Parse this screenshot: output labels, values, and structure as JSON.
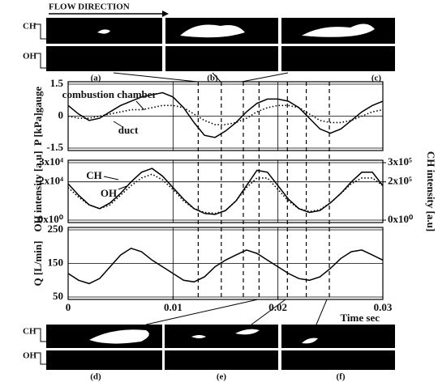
{
  "header": {
    "flow_direction": "FLOW DIRECTION"
  },
  "images": {
    "ch_label": "CH",
    "oh_label": "OH",
    "top_labels": [
      "(a)",
      "(b)",
      "(c)"
    ],
    "bottom_labels": [
      "(d)",
      "(e)",
      "(f)"
    ]
  },
  "snapshot_times": [
    0.0124,
    0.0146,
    0.0167,
    0.0182,
    0.0209,
    0.0227,
    0.0249
  ],
  "chart_data": [
    {
      "type": "line",
      "ylabel": "P [kPa]gauge",
      "x": [
        0,
        0.001,
        0.002,
        0.003,
        0.004,
        0.005,
        0.006,
        0.007,
        0.008,
        0.009,
        0.01,
        0.011,
        0.012,
        0.013,
        0.014,
        0.015,
        0.016,
        0.017,
        0.018,
        0.019,
        0.02,
        0.021,
        0.022,
        0.023,
        0.024,
        0.025,
        0.026,
        0.027,
        0.028,
        0.029,
        0.03
      ],
      "xlim": [
        0,
        0.03
      ],
      "ylim": [
        -1.5,
        1.5
      ],
      "yticks": [
        -1.5,
        0,
        1.5
      ],
      "series": [
        {
          "name": "combustion chamber",
          "color": "#000",
          "style": "solid",
          "values": [
            0.5,
            0.1,
            -0.2,
            -0.1,
            0.2,
            0.5,
            0.7,
            0.9,
            1.0,
            1.1,
            0.9,
            0.4,
            -0.3,
            -0.9,
            -1.0,
            -0.7,
            -0.3,
            0.2,
            0.6,
            0.8,
            0.8,
            0.7,
            0.4,
            -0.1,
            -0.6,
            -0.8,
            -0.6,
            -0.2,
            0.2,
            0.5,
            0.7
          ]
        },
        {
          "name": "duct",
          "color": "#000",
          "style": "dotted",
          "values": [
            0,
            -0.1,
            -0.1,
            0,
            0.1,
            0.2,
            0.3,
            0.3,
            0.4,
            0.5,
            0.5,
            0.4,
            0.1,
            -0.2,
            -0.4,
            -0.4,
            -0.3,
            -0.1,
            0.2,
            0.4,
            0.5,
            0.5,
            0.4,
            0.1,
            -0.2,
            -0.3,
            -0.3,
            -0.2,
            0,
            0.2,
            0.3
          ]
        }
      ]
    },
    {
      "type": "line",
      "ylabel": "OH intensity [a.u]",
      "y2label": "CH intensity [a.u]",
      "x": [
        0,
        0.001,
        0.002,
        0.003,
        0.004,
        0.005,
        0.006,
        0.007,
        0.008,
        0.009,
        0.01,
        0.011,
        0.012,
        0.013,
        0.014,
        0.015,
        0.016,
        0.017,
        0.018,
        0.019,
        0.02,
        0.021,
        0.022,
        0.023,
        0.024,
        0.025,
        0.026,
        0.027,
        0.028,
        0.029,
        0.03
      ],
      "xlim": [
        0,
        0.03
      ],
      "ylim": [
        0,
        30000
      ],
      "yticks": [
        {
          "value": 0,
          "label": "0x10⁰"
        },
        {
          "value": 20000,
          "label": "2x10⁴"
        },
        {
          "value": 30000,
          "label": "3x10⁴"
        }
      ],
      "y2lim": [
        0,
        300000
      ],
      "y2ticks": [
        {
          "value": 0,
          "label": "0x10⁰"
        },
        {
          "value": 200000,
          "label": "2x10⁵"
        },
        {
          "value": 300000,
          "label": "3x10⁵"
        }
      ],
      "series": [
        {
          "name": "CH",
          "color": "#000",
          "style": "solid",
          "axis": "y2",
          "values": [
            190000,
            130000,
            80000,
            60000,
            90000,
            140000,
            200000,
            250000,
            270000,
            230000,
            170000,
            110000,
            60000,
            35000,
            30000,
            50000,
            100000,
            180000,
            260000,
            250000,
            180000,
            110000,
            60000,
            40000,
            50000,
            90000,
            140000,
            200000,
            250000,
            250000,
            180000
          ]
        },
        {
          "name": "OH",
          "color": "#000",
          "style": "dotted",
          "values": [
            17000,
            12000,
            8000,
            6000,
            8000,
            13000,
            18000,
            22000,
            24000,
            21000,
            16000,
            10000,
            6000,
            4000,
            3500,
            5000,
            10000,
            17000,
            22000,
            22000,
            16000,
            10000,
            6000,
            4500,
            5500,
            9000,
            14000,
            19000,
            22000,
            22000,
            18000
          ]
        }
      ]
    },
    {
      "type": "line",
      "ylabel": "Q [L/min]",
      "xlabel": "Time sec",
      "x": [
        0,
        0.001,
        0.002,
        0.003,
        0.004,
        0.005,
        0.006,
        0.007,
        0.008,
        0.009,
        0.01,
        0.011,
        0.012,
        0.013,
        0.014,
        0.015,
        0.016,
        0.017,
        0.018,
        0.019,
        0.02,
        0.021,
        0.022,
        0.023,
        0.024,
        0.025,
        0.026,
        0.027,
        0.028,
        0.029,
        0.03
      ],
      "xlim": [
        0,
        0.03
      ],
      "xticks": [
        0,
        0.01,
        0.02,
        0.03
      ],
      "ylim": [
        50,
        250
      ],
      "yticks": [
        50,
        150,
        250
      ],
      "series": [
        {
          "name": "Q",
          "color": "#000",
          "style": "solid",
          "values": [
            120,
            100,
            90,
            105,
            140,
            175,
            195,
            185,
            160,
            140,
            120,
            100,
            95,
            110,
            140,
            160,
            175,
            190,
            180,
            160,
            140,
            120,
            105,
            100,
            110,
            135,
            165,
            185,
            190,
            175,
            160
          ]
        }
      ]
    }
  ]
}
